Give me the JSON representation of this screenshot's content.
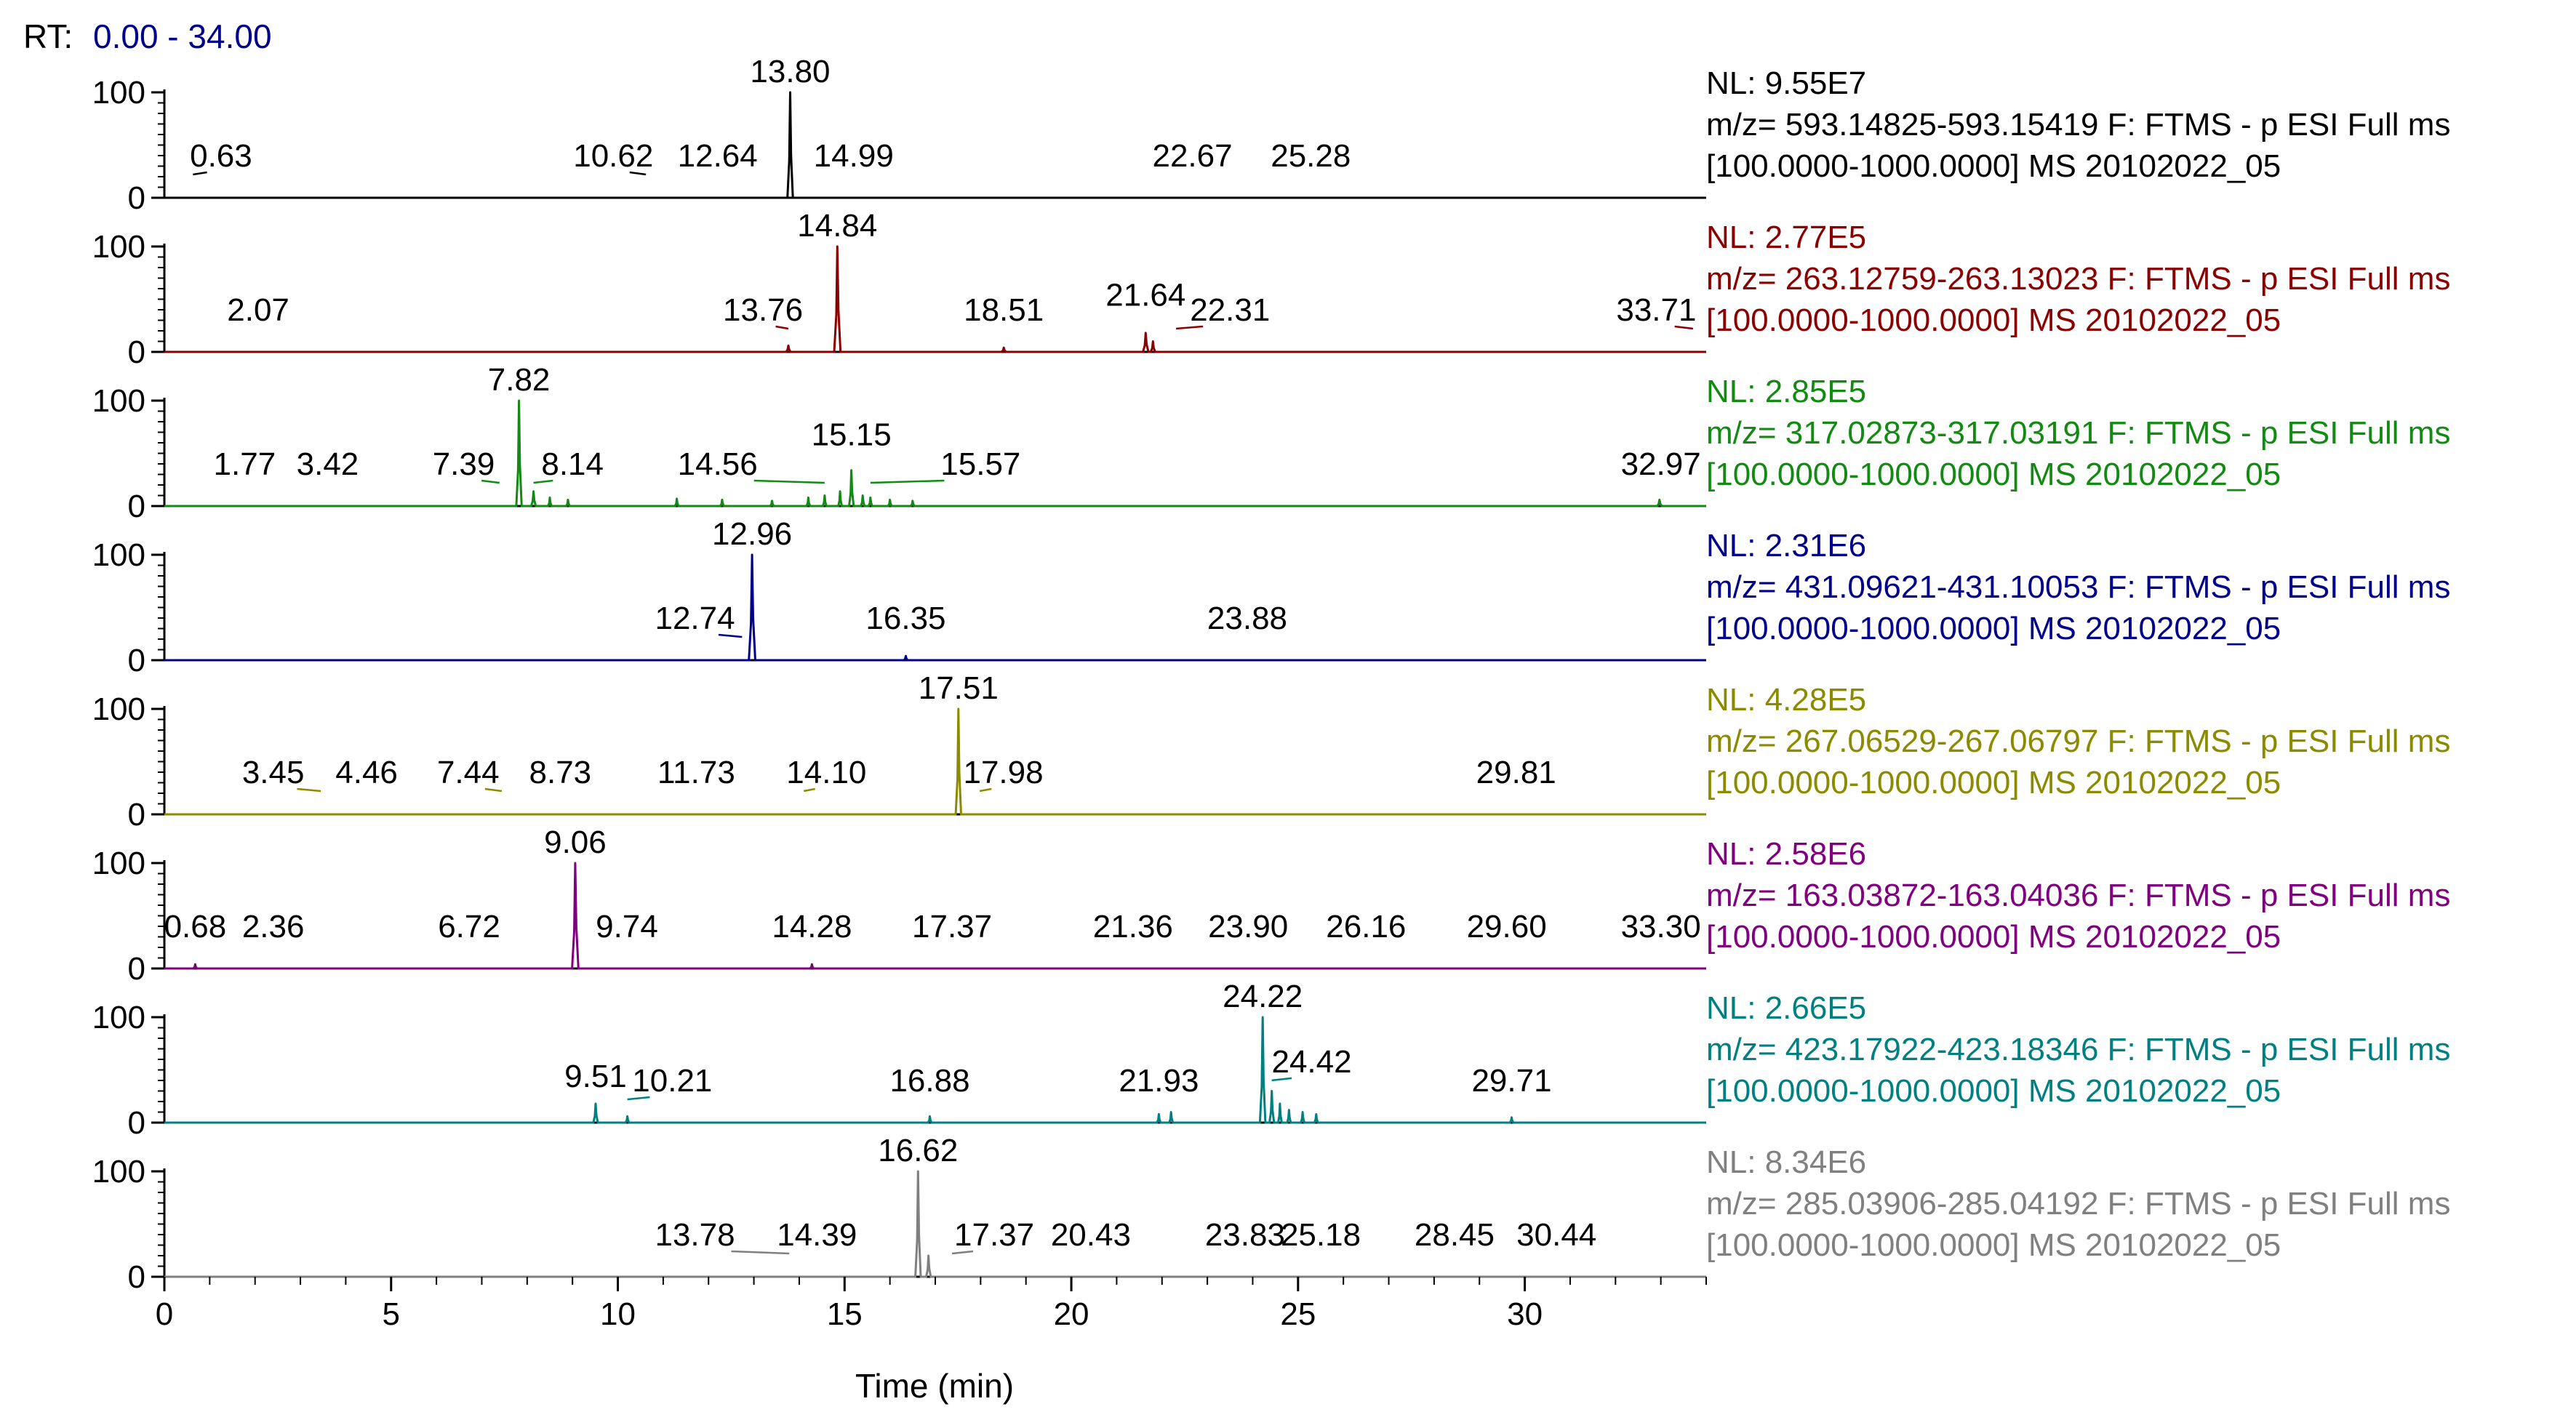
{
  "chart_data": {
    "type": "line",
    "title": "",
    "rt_label": "RT:",
    "rt_range": "0.00 - 34.00",
    "xlabel": "Time (min)",
    "xlim": [
      0,
      34
    ],
    "x_ticks": [
      0,
      5,
      10,
      15,
      20,
      25,
      30
    ],
    "ylim": [
      0,
      100
    ],
    "y_ticks": [
      0,
      100
    ],
    "series": [
      {
        "name": "trace-1",
        "color": "#000000",
        "nl": "NL: 9.55E7",
        "mz": "m/z= 593.14825-593.15419 F: FTMS - p ESI Full ms",
        "scan": "[100.0000-1000.0000]  MS 20102022_05",
        "peaks": [
          {
            "rt": 13.8,
            "height": 100,
            "width": 0.12
          }
        ],
        "labels": [
          {
            "text": "0.63",
            "rt": 1.25,
            "lrt": 0.63,
            "h": 20
          },
          {
            "text": "10.62",
            "rt": 9.9,
            "lrt": 10.62,
            "h": 20
          },
          {
            "text": "12.64",
            "rt": 12.2,
            "lrt": 12.64,
            "h": 20
          },
          {
            "text": "13.80",
            "rt": 13.8,
            "lrt": 13.8,
            "h": 100
          },
          {
            "text": "14.99",
            "rt": 15.2,
            "lrt": 14.99,
            "h": 20
          },
          {
            "text": "22.67",
            "rt": 22.67,
            "h": 20
          },
          {
            "text": "25.28",
            "rt": 25.28,
            "h": 20
          }
        ]
      },
      {
        "name": "trace-2",
        "color": "#8b0000",
        "nl": "NL: 2.77E5",
        "mz": "m/z= 263.12759-263.13023 F: FTMS - p ESI Full ms",
        "scan": "[100.0000-1000.0000]  MS 20102022_05",
        "peaks": [
          {
            "rt": 14.84,
            "height": 100,
            "width": 0.14
          },
          {
            "rt": 13.76,
            "height": 6,
            "width": 0.1
          },
          {
            "rt": 18.51,
            "height": 4,
            "width": 0.1
          },
          {
            "rt": 21.64,
            "height": 18,
            "width": 0.12
          },
          {
            "rt": 21.8,
            "height": 10,
            "width": 0.1
          }
        ],
        "labels": [
          {
            "text": "2.07",
            "rt": 2.07,
            "h": 20
          },
          {
            "text": "13.76",
            "rt": 13.2,
            "lrt": 13.76,
            "h": 20
          },
          {
            "text": "14.84",
            "rt": 14.84,
            "lrt": 14.84,
            "h": 100
          },
          {
            "text": "18.51",
            "rt": 18.51,
            "lrt": 18.51,
            "h": 20
          },
          {
            "text": "21.64",
            "rt": 21.64,
            "lrt": 21.64,
            "h": 34
          },
          {
            "text": "22.31",
            "rt": 23.5,
            "lrt": 22.31,
            "h": 20
          },
          {
            "text": "33.71",
            "rt": 32.9,
            "lrt": 33.71,
            "h": 20
          }
        ]
      },
      {
        "name": "trace-3",
        "color": "#138a13",
        "nl": "NL: 2.85E5",
        "mz": "m/z= 317.02873-317.03191 F: FTMS - p ESI Full ms",
        "scan": "[100.0000-1000.0000]  MS 20102022_05",
        "peaks": [
          {
            "rt": 7.82,
            "height": 100,
            "width": 0.12
          },
          {
            "rt": 8.14,
            "height": 14,
            "width": 0.1
          },
          {
            "rt": 8.5,
            "height": 8,
            "width": 0.08
          },
          {
            "rt": 8.9,
            "height": 6,
            "width": 0.08
          },
          {
            "rt": 11.3,
            "height": 7,
            "width": 0.08
          },
          {
            "rt": 12.3,
            "height": 6,
            "width": 0.08
          },
          {
            "rt": 13.4,
            "height": 5,
            "width": 0.08
          },
          {
            "rt": 14.2,
            "height": 8,
            "width": 0.08
          },
          {
            "rt": 14.56,
            "height": 10,
            "width": 0.08
          },
          {
            "rt": 14.9,
            "height": 14,
            "width": 0.08
          },
          {
            "rt": 15.15,
            "height": 34,
            "width": 0.1
          },
          {
            "rt": 15.4,
            "height": 10,
            "width": 0.08
          },
          {
            "rt": 15.57,
            "height": 8,
            "width": 0.08
          },
          {
            "rt": 16.0,
            "height": 6,
            "width": 0.08
          },
          {
            "rt": 16.5,
            "height": 5,
            "width": 0.08
          },
          {
            "rt": 32.97,
            "height": 6,
            "width": 0.1
          }
        ],
        "labels": [
          {
            "text": "1.77",
            "rt": 1.77,
            "h": 20
          },
          {
            "text": "3.42",
            "rt": 3.6,
            "lrt": 3.42,
            "h": 20
          },
          {
            "text": "7.39",
            "rt": 6.6,
            "lrt": 7.39,
            "h": 20
          },
          {
            "text": "7.82",
            "rt": 7.82,
            "lrt": 7.82,
            "h": 100
          },
          {
            "text": "8.14",
            "rt": 9.0,
            "lrt": 8.14,
            "h": 20
          },
          {
            "text": "14.56",
            "rt": 12.2,
            "lrt": 14.56,
            "h": 20
          },
          {
            "text": "15.15",
            "rt": 15.15,
            "lrt": 15.15,
            "h": 48
          },
          {
            "text": "15.57",
            "rt": 18.0,
            "lrt": 15.57,
            "h": 20
          },
          {
            "text": "32.97",
            "rt": 33.0,
            "lrt": 32.97,
            "h": 20
          }
        ]
      },
      {
        "name": "trace-4",
        "color": "#00008b",
        "nl": "NL: 2.31E6",
        "mz": "m/z= 431.09621-431.10053 F: FTMS - p ESI Full ms",
        "scan": "[100.0000-1000.0000]  MS 20102022_05",
        "peaks": [
          {
            "rt": 12.96,
            "height": 100,
            "width": 0.14
          },
          {
            "rt": 16.35,
            "height": 4,
            "width": 0.08
          }
        ],
        "labels": [
          {
            "text": "12.74",
            "rt": 11.7,
            "lrt": 12.74,
            "h": 20
          },
          {
            "text": "12.96",
            "rt": 12.96,
            "lrt": 12.96,
            "h": 100
          },
          {
            "text": "16.35",
            "rt": 16.35,
            "lrt": 16.35,
            "h": 20
          },
          {
            "text": "23.88",
            "rt": 23.88,
            "h": 20
          }
        ]
      },
      {
        "name": "trace-5",
        "color": "#8b8b00",
        "nl": "NL: 4.28E5",
        "mz": "m/z= 267.06529-267.06797 F: FTMS - p ESI Full ms",
        "scan": "[100.0000-1000.0000]  MS 20102022_05",
        "peaks": [
          {
            "rt": 17.51,
            "height": 100,
            "width": 0.12
          }
        ],
        "labels": [
          {
            "text": "3.45",
            "rt": 2.4,
            "lrt": 3.45,
            "h": 20
          },
          {
            "text": "4.46",
            "rt": 4.46,
            "h": 20
          },
          {
            "text": "7.44",
            "rt": 6.7,
            "lrt": 7.44,
            "h": 20
          },
          {
            "text": "8.73",
            "rt": 8.73,
            "h": 20
          },
          {
            "text": "11.73",
            "rt": 11.73,
            "h": 20
          },
          {
            "text": "14.10",
            "rt": 14.6,
            "lrt": 14.1,
            "h": 20
          },
          {
            "text": "17.51",
            "rt": 17.51,
            "lrt": 17.51,
            "h": 100
          },
          {
            "text": "17.98",
            "rt": 18.5,
            "lrt": 17.98,
            "h": 20
          },
          {
            "text": "29.81",
            "rt": 29.81,
            "h": 20
          }
        ]
      },
      {
        "name": "trace-6",
        "color": "#800080",
        "nl": "NL: 2.58E6",
        "mz": "m/z= 163.03872-163.04036 F: FTMS - p ESI Full ms",
        "scan": "[100.0000-1000.0000]  MS 20102022_05",
        "peaks": [
          {
            "rt": 9.06,
            "height": 100,
            "width": 0.14
          },
          {
            "rt": 0.68,
            "height": 4,
            "width": 0.08
          },
          {
            "rt": 14.28,
            "height": 4,
            "width": 0.08
          }
        ],
        "labels": [
          {
            "text": "0.68",
            "rt": 0.68,
            "lrt": 0.68,
            "h": 20
          },
          {
            "text": "2.36",
            "rt": 2.4,
            "lrt": 2.36,
            "h": 20
          },
          {
            "text": "6.72",
            "rt": 6.72,
            "h": 20
          },
          {
            "text": "9.06",
            "rt": 9.06,
            "lrt": 9.06,
            "h": 100
          },
          {
            "text": "9.74",
            "rt": 10.2,
            "lrt": 9.74,
            "h": 20
          },
          {
            "text": "14.28",
            "rt": 14.28,
            "lrt": 14.28,
            "h": 20
          },
          {
            "text": "17.37",
            "rt": 17.37,
            "h": 20
          },
          {
            "text": "21.36",
            "rt": 21.36,
            "h": 20
          },
          {
            "text": "23.90",
            "rt": 23.9,
            "h": 20
          },
          {
            "text": "26.16",
            "rt": 26.5,
            "lrt": 26.16,
            "h": 20
          },
          {
            "text": "29.60",
            "rt": 29.6,
            "h": 20
          },
          {
            "text": "33.30",
            "rt": 33.0,
            "lrt": 33.3,
            "h": 20
          }
        ]
      },
      {
        "name": "trace-7",
        "color": "#008080",
        "nl": "NL: 2.66E5",
        "mz": "m/z= 423.17922-423.18346 F: FTMS - p ESI Full ms",
        "scan": "[100.0000-1000.0000]  MS 20102022_05",
        "peaks": [
          {
            "rt": 24.22,
            "height": 100,
            "width": 0.12
          },
          {
            "rt": 24.42,
            "height": 30,
            "width": 0.1
          },
          {
            "rt": 24.6,
            "height": 18,
            "width": 0.08
          },
          {
            "rt": 24.8,
            "height": 12,
            "width": 0.08
          },
          {
            "rt": 25.1,
            "height": 10,
            "width": 0.08
          },
          {
            "rt": 25.4,
            "height": 8,
            "width": 0.08
          },
          {
            "rt": 9.51,
            "height": 18,
            "width": 0.1
          },
          {
            "rt": 10.21,
            "height": 6,
            "width": 0.08
          },
          {
            "rt": 16.88,
            "height": 6,
            "width": 0.08
          },
          {
            "rt": 21.93,
            "height": 8,
            "width": 0.08
          },
          {
            "rt": 22.2,
            "height": 10,
            "width": 0.08
          },
          {
            "rt": 29.71,
            "height": 5,
            "width": 0.08
          }
        ],
        "labels": [
          {
            "text": "9.51",
            "rt": 9.51,
            "lrt": 9.51,
            "h": 24
          },
          {
            "text": "10.21",
            "rt": 11.2,
            "lrt": 10.21,
            "h": 20
          },
          {
            "text": "16.88",
            "rt": 16.88,
            "lrt": 16.88,
            "h": 20
          },
          {
            "text": "21.93",
            "rt": 21.93,
            "lrt": 21.93,
            "h": 20
          },
          {
            "text": "24.22",
            "rt": 24.22,
            "lrt": 24.22,
            "h": 100
          },
          {
            "text": "24.42",
            "rt": 25.3,
            "lrt": 24.42,
            "h": 38
          },
          {
            "text": "29.71",
            "rt": 29.71,
            "lrt": 29.71,
            "h": 20
          }
        ]
      },
      {
        "name": "trace-8",
        "color": "#808080",
        "nl": "NL: 8.34E6",
        "mz": "m/z= 285.03906-285.04192 F: FTMS - p ESI Full ms",
        "scan": "[100.0000-1000.0000]  MS 20102022_05",
        "peaks": [
          {
            "rt": 16.62,
            "height": 100,
            "width": 0.12
          },
          {
            "rt": 16.85,
            "height": 20,
            "width": 0.1
          }
        ],
        "labels": [
          {
            "text": "13.78",
            "rt": 11.7,
            "lrt": 13.78,
            "h": 20
          },
          {
            "text": "14.39",
            "rt": 14.39,
            "lrt": 14.39,
            "h": 20
          },
          {
            "text": "16.62",
            "rt": 16.62,
            "lrt": 16.62,
            "h": 100
          },
          {
            "text": "17.37",
            "rt": 18.3,
            "lrt": 17.37,
            "h": 20
          },
          {
            "text": "20.43",
            "rt": 20.43,
            "lrt": 20.43,
            "h": 20
          },
          {
            "text": "23.83",
            "rt": 23.83,
            "h": 20
          },
          {
            "text": "25.18",
            "rt": 25.5,
            "lrt": 25.18,
            "h": 20
          },
          {
            "text": "28.45",
            "rt": 28.45,
            "lrt": 28.45,
            "h": 20
          },
          {
            "text": "30.44",
            "rt": 30.7,
            "lrt": 30.44,
            "h": 20
          }
        ]
      }
    ]
  }
}
